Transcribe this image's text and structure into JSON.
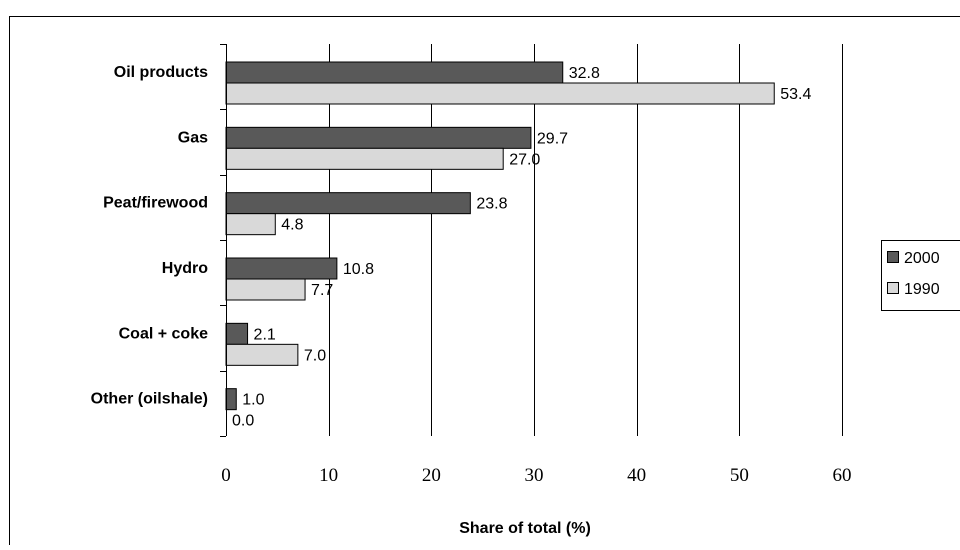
{
  "chart_data": {
    "type": "bar",
    "orientation": "horizontal",
    "categories": [
      "Oil products",
      "Gas",
      "Peat/firewood",
      "Hydro",
      "Coal + coke",
      "Other (oilshale)"
    ],
    "series": [
      {
        "name": "2000",
        "values": [
          32.8,
          29.7,
          23.8,
          10.8,
          2.1,
          1.0
        ],
        "labels": [
          "32.8",
          "29.7",
          "23.8",
          "10.8",
          "2.1",
          "1.0"
        ],
        "color": "#595959"
      },
      {
        "name": "1990",
        "values": [
          53.4,
          27.0,
          4.8,
          7.7,
          7.0,
          0.0
        ],
        "labels": [
          "53.4",
          "27.0",
          "4.8",
          "7.7",
          "7.0",
          "0.0"
        ],
        "color": "#d9d9d9"
      }
    ],
    "xlabel": "Share of total (%)",
    "ylabel": "",
    "xlim": [
      0,
      60
    ],
    "xticks": [
      0,
      10,
      20,
      30,
      40,
      50,
      60
    ],
    "xtick_labels": [
      "0",
      "10",
      "20",
      "30",
      "40",
      "50",
      "60"
    ],
    "grid": "vertical",
    "legend": "right"
  }
}
